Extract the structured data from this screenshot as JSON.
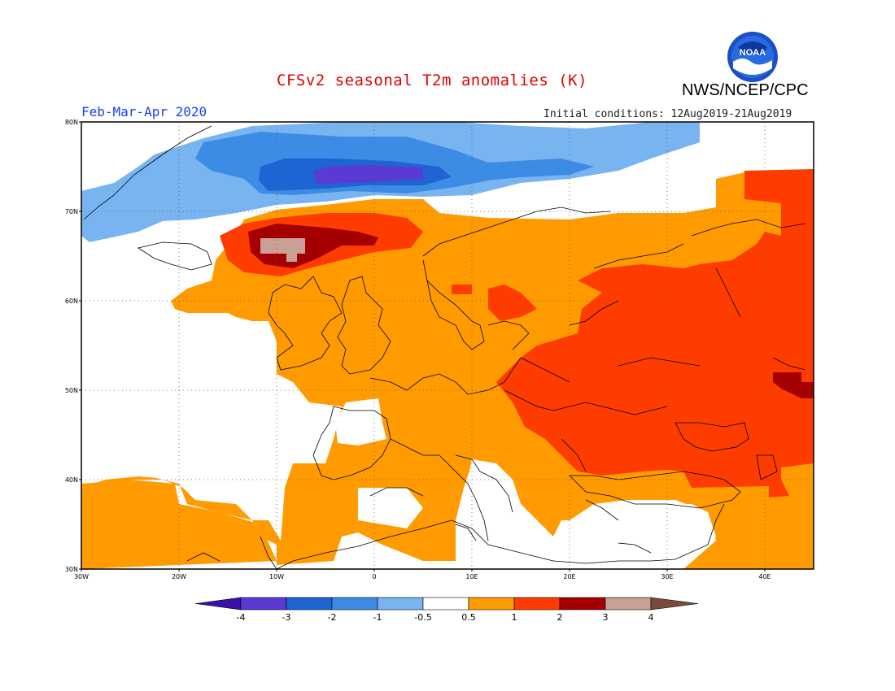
{
  "header": {
    "title": "CFSv2 seasonal T2m anomalies (K)",
    "agency": "NWS/NCEP/CPC",
    "season": "Feb-Mar-Apr 2020",
    "initial_conditions": "Initial conditions: 12Aug2019-21Aug2019",
    "logo_text": "NOAA"
  },
  "map": {
    "lat_labels": [
      "80N",
      "70N",
      "60N",
      "50N",
      "40N",
      "30N"
    ],
    "lon_labels": [
      "30W",
      "20W",
      "10W",
      "0",
      "10E",
      "20E",
      "30E",
      "40E"
    ],
    "extent": {
      "lon_min": -30,
      "lon_max": 45,
      "lat_min": 30,
      "lat_max": 80
    }
  },
  "colorbar": {
    "labels": [
      "-4",
      "-3",
      "-2",
      "-1",
      "-0.5",
      "0.5",
      "1",
      "2",
      "3",
      "4"
    ],
    "colors": [
      "#3a10a8",
      "#5a3ad2",
      "#1e64d2",
      "#3c8ce6",
      "#78b4f0",
      "#ffffff",
      "#ff9b00",
      "#ff3c00",
      "#a50000",
      "#c8a096",
      "#7a4a3c"
    ]
  }
}
